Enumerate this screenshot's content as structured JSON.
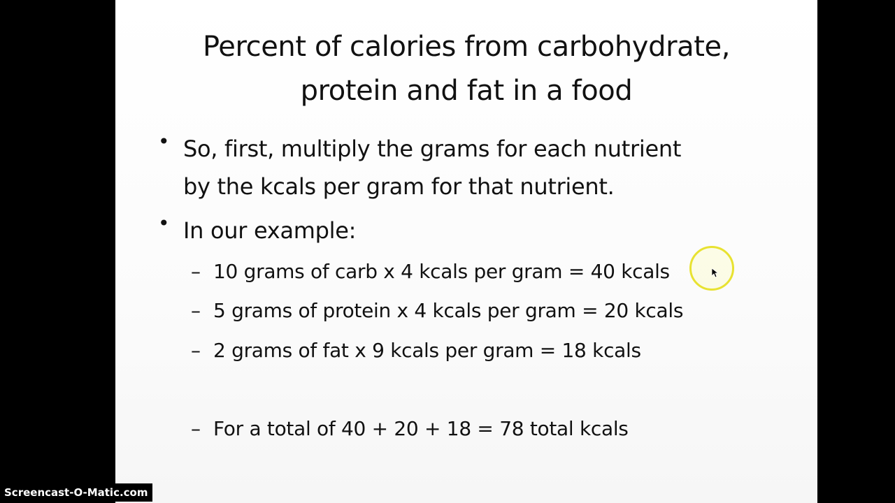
{
  "slide": {
    "title_lines": [
      "Percent of calories from carbohydrate,",
      "protein and fat in a food"
    ],
    "bullets": [
      {
        "symbol": "•",
        "lines": [
          "So, first, multiply the grams for each nutrient",
          "by the kcals per gram for that nutrient."
        ]
      },
      {
        "symbol": "•",
        "lines": [
          "In our example:"
        ]
      }
    ],
    "subitems": [
      {
        "dash": "–",
        "text": "10 grams of carb x 4 kcals per gram = 40 kcals"
      },
      {
        "dash": "–",
        "text": "5 grams of protein x 4 kcals per gram = 20 kcals"
      },
      {
        "dash": "–",
        "text": "2 grams of fat x 9 kcals per gram = 18 kcals"
      },
      {
        "dash": "–",
        "text": "For a total of 40 + 20 + 18 = 78 total kcals"
      }
    ]
  },
  "watermark": {
    "text": "Screencast-O-Matic.com"
  },
  "colors": {
    "background": "#000000",
    "slide": "#ffffff",
    "text": "#111111",
    "cursor_highlight": "#e8e231"
  },
  "icons": {
    "cursor": "mouse-pointer-icon",
    "highlight": "cursor-highlight-ring"
  }
}
